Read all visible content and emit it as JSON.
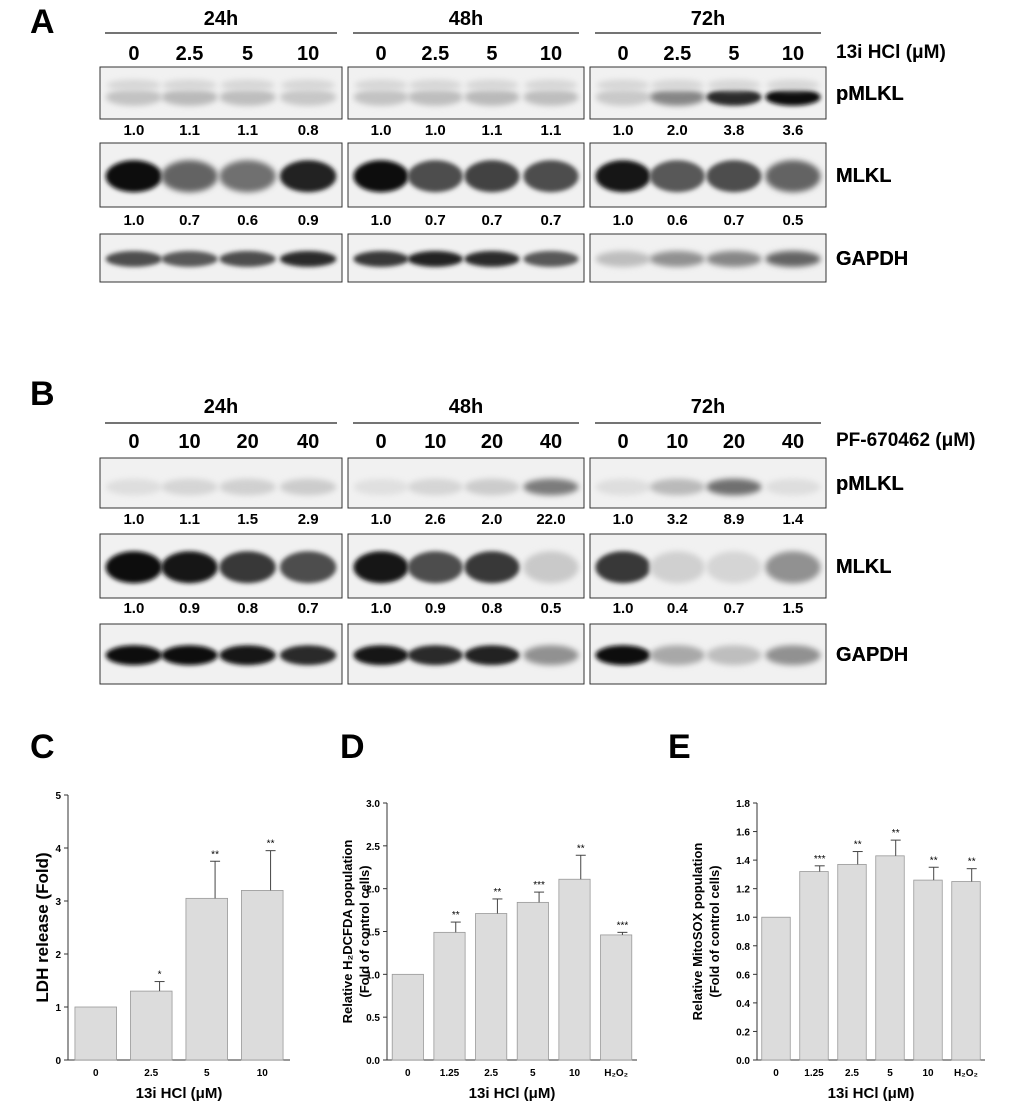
{
  "panels": {
    "A": {
      "letter": "A",
      "treatment": "13i HCl (μM)",
      "groups": [
        {
          "time": "24h",
          "conc": [
            "0",
            "2.5",
            "5",
            "10"
          ],
          "pMLKL_ratio": [
            "1.0",
            "1.1",
            "1.1",
            "0.8"
          ],
          "MLKL_ratio": [
            "1.0",
            "0.7",
            "0.6",
            "0.9"
          ]
        },
        {
          "time": "48h",
          "conc": [
            "0",
            "2.5",
            "5",
            "10"
          ],
          "pMLKL_ratio": [
            "1.0",
            "1.0",
            "1.1",
            "1.1"
          ],
          "MLKL_ratio": [
            "1.0",
            "0.7",
            "0.7",
            "0.7"
          ]
        },
        {
          "time": "72h",
          "conc": [
            "0",
            "2.5",
            "5",
            "10"
          ],
          "pMLKL_ratio": [
            "1.0",
            "2.0",
            "3.8",
            "3.6"
          ],
          "MLKL_ratio": [
            "1.0",
            "0.6",
            "0.7",
            "0.5"
          ]
        }
      ],
      "rows": [
        "pMLKL",
        "MLKL",
        "GAPDH"
      ]
    },
    "B": {
      "letter": "B",
      "treatment": "PF-670462 (μM)",
      "groups": [
        {
          "time": "24h",
          "conc": [
            "0",
            "10",
            "20",
            "40"
          ],
          "pMLKL_ratio": [
            "1.0",
            "1.1",
            "1.5",
            "2.9"
          ],
          "MLKL_ratio": [
            "1.0",
            "0.9",
            "0.8",
            "0.7"
          ]
        },
        {
          "time": "48h",
          "conc": [
            "0",
            "10",
            "20",
            "40"
          ],
          "pMLKL_ratio": [
            "1.0",
            "2.6",
            "2.0",
            "22.0"
          ],
          "MLKL_ratio": [
            "1.0",
            "0.9",
            "0.8",
            "0.5"
          ]
        },
        {
          "time": "72h",
          "conc": [
            "0",
            "10",
            "20",
            "40"
          ],
          "pMLKL_ratio": [
            "1.0",
            "3.2",
            "8.9",
            "1.4"
          ],
          "MLKL_ratio": [
            "1.0",
            "0.4",
            "0.7",
            "1.5"
          ]
        }
      ],
      "rows": [
        "pMLKL",
        "MLKL",
        "GAPDH"
      ]
    }
  },
  "chart_data": [
    {
      "panel": "C",
      "type": "bar",
      "categories": [
        "0",
        "2.5",
        "5",
        "10"
      ],
      "values": [
        1.0,
        1.3,
        3.05,
        3.2
      ],
      "errors": [
        0,
        0.18,
        0.7,
        0.75
      ],
      "significance": [
        "",
        "*",
        "**",
        "**"
      ],
      "xlabel": "13i HCl (μM)",
      "ylabel": "LDH release (Fold)",
      "ylim": [
        0,
        5
      ],
      "yticks": [
        "0",
        "1",
        "2",
        "3",
        "4",
        "5"
      ],
      "bar_color": "#dcdcdc"
    },
    {
      "panel": "D",
      "type": "bar",
      "categories": [
        "0",
        "1.25",
        "2.5",
        "5",
        "10",
        "H₂O₂"
      ],
      "values": [
        1.0,
        1.49,
        1.71,
        1.84,
        2.11,
        1.46
      ],
      "errors": [
        0,
        0.12,
        0.17,
        0.12,
        0.28,
        0.03
      ],
      "significance": [
        "",
        "**",
        "**",
        "***",
        "**",
        "***"
      ],
      "xlabel": "13i HCl (μM)",
      "ylabel_line1": "Relative H₂DCFDA population",
      "ylabel_line2": "(Fold of control cells)",
      "ylim": [
        0,
        3.0
      ],
      "yticks": [
        "0.0",
        "0.5",
        "1.0",
        "1.5",
        "2.0",
        "2.5",
        "3.0"
      ],
      "bar_color": "#dcdcdc"
    },
    {
      "panel": "E",
      "type": "bar",
      "categories": [
        "0",
        "1.25",
        "2.5",
        "5",
        "10",
        "H₂O₂"
      ],
      "values": [
        1.0,
        1.32,
        1.37,
        1.43,
        1.26,
        1.25
      ],
      "errors": [
        0,
        0.04,
        0.09,
        0.11,
        0.09,
        0.09
      ],
      "significance": [
        "",
        "***",
        "**",
        "**",
        "**",
        "**"
      ],
      "xlabel": "13i HCl (μM)",
      "ylabel_line1": "Relative MitoSOX population",
      "ylabel_line2": "(Fold of control cells)",
      "ylim": [
        0,
        1.8
      ],
      "yticks": [
        "0.0",
        "0.2",
        "0.4",
        "0.6",
        "0.8",
        "1.0",
        "1.2",
        "1.4",
        "1.6",
        "1.8"
      ],
      "bar_color": "#dcdcdc"
    }
  ],
  "chart_letters": [
    "C",
    "D",
    "E"
  ],
  "blots": {
    "A": {
      "pMLKL": [
        [
          0.18,
          0.22,
          0.2,
          0.16
        ],
        [
          0.18,
          0.2,
          0.22,
          0.2
        ],
        [
          0.15,
          0.45,
          0.85,
          1.0
        ]
      ],
      "MLKL": [
        [
          1.0,
          0.6,
          0.55,
          0.9
        ],
        [
          1.0,
          0.7,
          0.75,
          0.7
        ],
        [
          0.95,
          0.65,
          0.7,
          0.6
        ]
      ],
      "GAPDH": [
        [
          0.7,
          0.65,
          0.7,
          0.85
        ],
        [
          0.8,
          0.9,
          0.85,
          0.65
        ],
        [
          0.2,
          0.4,
          0.45,
          0.6
        ]
      ]
    },
    "B": {
      "pMLKL": [
        [
          0.06,
          0.1,
          0.12,
          0.14
        ],
        [
          0.05,
          0.1,
          0.14,
          0.5
        ],
        [
          0.06,
          0.22,
          0.55,
          0.06
        ]
      ],
      "MLKL": [
        [
          1.0,
          0.95,
          0.8,
          0.7
        ],
        [
          0.95,
          0.7,
          0.8,
          0.15
        ],
        [
          0.8,
          0.12,
          0.1,
          0.4
        ]
      ],
      "GAPDH": [
        [
          1.0,
          1.0,
          0.95,
          0.85
        ],
        [
          0.95,
          0.85,
          0.9,
          0.4
        ],
        [
          1.0,
          0.3,
          0.2,
          0.4
        ]
      ]
    }
  }
}
